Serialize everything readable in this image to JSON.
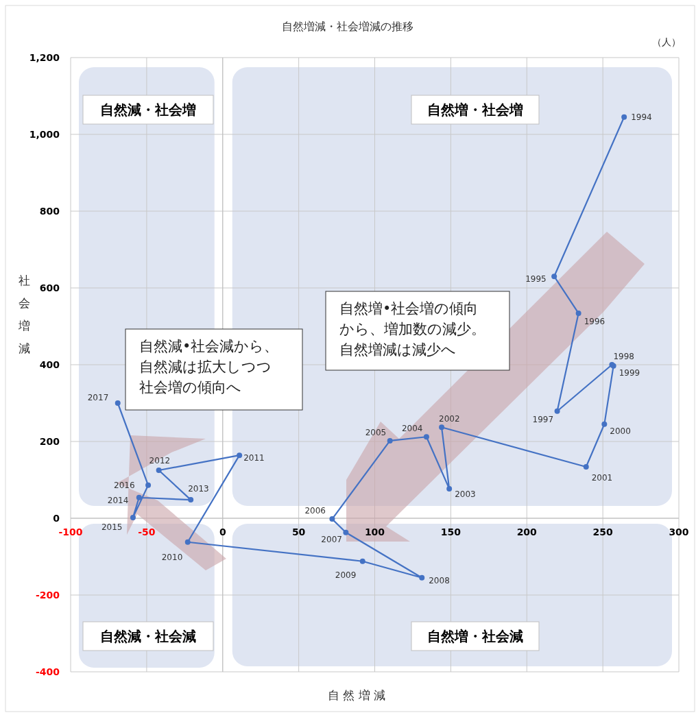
{
  "chart_data": {
    "type": "line",
    "title": "自然増減・社会増減の推移",
    "xlabel": "自 然 増 減",
    "ylabel": "社会増減",
    "x": [
      264,
      218,
      234,
      220,
      256,
      257,
      251,
      239,
      144,
      149,
      134,
      110,
      72,
      81,
      131,
      92,
      -23,
      11,
      -42,
      -21,
      -55,
      -59,
      -49,
      -69
    ],
    "series": [
      {
        "color": "#4472c4",
        "values": [
          1045,
          630,
          534,
          279,
          400,
          397,
          245,
          134,
          237,
          77,
          212,
          202,
          -2,
          -37,
          -155,
          -112,
          -62,
          164,
          125,
          48,
          54,
          2,
          86,
          300
        ]
      }
    ],
    "xlim": [
      -100,
      300
    ],
    "xticks": [
      -100,
      -50,
      0,
      50,
      100,
      150,
      200,
      250,
      300
    ],
    "ylim": [
      -400,
      1200
    ],
    "yticks": [
      {
        "value": -400,
        "label": "-400"
      },
      {
        "value": -200,
        "label": "-200"
      },
      0,
      {
        "value": 200,
        "label": "200"
      },
      {
        "value": 400,
        "label": "400"
      },
      {
        "value": 600,
        "label": "600"
      },
      {
        "value": 800,
        "label": "800"
      },
      {
        "value": 1000,
        "label": "1,000"
      },
      {
        "value": 1200,
        "label": "1,200"
      }
    ],
    "grid": true,
    "marker": "circle",
    "line_style": "solid",
    "annotations": [
      "（人）",
      "自然減・社会増",
      "自然増・社会増",
      "自然減・社会減",
      "自然増・社会減",
      "自然減•社会減から、自然減は拡大しつつ社会増の傾向へ",
      "自然増•社会増の傾向から、増加数の減少。自然増減は減少へ",
      {
        "text": "1994",
        "x": 264,
        "y": 1045
      },
      {
        "text": "1995",
        "x": 218,
        "y": 630
      },
      {
        "text": "1996",
        "x": 234,
        "y": 534
      },
      {
        "text": "1997",
        "x": 220,
        "y": 279
      },
      {
        "text": "1998",
        "x": 256,
        "y": 400
      },
      {
        "text": "1999",
        "x": 257,
        "y": 397
      },
      {
        "text": "2000",
        "x": 251,
        "y": 245
      },
      {
        "text": "2001",
        "x": 239,
        "y": 134
      },
      {
        "text": "2002",
        "x": 144,
        "y": 237
      },
      {
        "text": "2003",
        "x": 149,
        "y": 77
      },
      {
        "text": "2004",
        "x": 134,
        "y": 212
      },
      {
        "text": "2005",
        "x": 110,
        "y": 202
      },
      {
        "text": "2006",
        "x": 72,
        "y": -2
      },
      {
        "text": "2007",
        "x": 81,
        "y": -37
      },
      {
        "text": "2008",
        "x": 131,
        "y": -155
      },
      {
        "text": "2009",
        "x": 92,
        "y": -112
      },
      {
        "text": "2010",
        "x": -23,
        "y": -62
      },
      {
        "text": "2011",
        "x": 11,
        "y": 164
      },
      {
        "text": "2012",
        "x": -42,
        "y": 125
      },
      {
        "text": "2013",
        "x": -21,
        "y": 48
      },
      {
        "text": "2014",
        "x": -55,
        "y": 54
      },
      {
        "text": "2015",
        "x": -59,
        "y": 2
      },
      {
        "text": "2016",
        "x": -49,
        "y": 86
      },
      {
        "text": "2017",
        "x": -69,
        "y": 300
      }
    ]
  }
}
